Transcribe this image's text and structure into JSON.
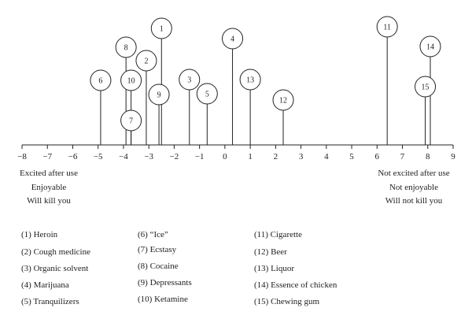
{
  "chart_data": {
    "type": "scatter",
    "title": "",
    "xlabel": "",
    "ylabel": "",
    "xlim": [
      -8,
      9
    ],
    "x_ticks": [
      "−8",
      "−7",
      "−6",
      "−5",
      "−4",
      "−3",
      "−2",
      "−1",
      "0",
      "1",
      "2",
      "3",
      "4",
      "5",
      "6",
      "7",
      "8",
      "9"
    ],
    "left_pole_labels": [
      "Excited after use",
      "Enjoyable",
      "Will kill you"
    ],
    "right_pole_labels": [
      "Not excited after use",
      "Not enjoyable",
      "Will not kill you"
    ],
    "points": [
      {
        "id": "1",
        "x": -2.5
      },
      {
        "id": "2",
        "x": -3.1
      },
      {
        "id": "3",
        "x": -1.4
      },
      {
        "id": "4",
        "x": 0.3
      },
      {
        "id": "5",
        "x": -0.7
      },
      {
        "id": "6",
        "x": -4.9
      },
      {
        "id": "7",
        "x": -3.7
      },
      {
        "id": "8",
        "x": -3.9
      },
      {
        "id": "9",
        "x": -2.6
      },
      {
        "id": "10",
        "x": -3.7
      },
      {
        "id": "11",
        "x": 6.4
      },
      {
        "id": "12",
        "x": 2.3
      },
      {
        "id": "13",
        "x": 1.0
      },
      {
        "id": "14",
        "x": 8.1
      },
      {
        "id": "15",
        "x": 7.9
      }
    ],
    "legend": [
      "(1) Heroin",
      "(2) Cough medicine",
      "(3) Organic solvent",
      "(4) Marijuana",
      "(5) Tranquilizers",
      "(6) “Ice”",
      "(7) Ecstasy",
      "(8) Cocaine",
      "(9) Depressants",
      "(10) Ketamine",
      "(11) Cigarette",
      "(12) Beer",
      "(13) Liquor",
      "(14) Essence of chicken",
      "(15) Chewing gum"
    ]
  }
}
